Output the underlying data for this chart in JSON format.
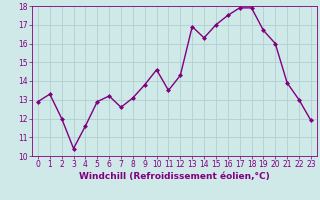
{
  "x": [
    0,
    1,
    2,
    3,
    4,
    5,
    6,
    7,
    8,
    9,
    10,
    11,
    12,
    13,
    14,
    15,
    16,
    17,
    18,
    19,
    20,
    21,
    22,
    23
  ],
  "y": [
    12.9,
    13.3,
    12.0,
    10.4,
    11.6,
    12.9,
    13.2,
    12.6,
    13.1,
    13.8,
    14.6,
    13.5,
    14.3,
    16.9,
    16.3,
    17.0,
    17.5,
    17.9,
    17.9,
    16.7,
    16.0,
    13.9,
    13.0,
    11.9
  ],
  "line_color": "#800080",
  "marker": "D",
  "marker_size": 2.0,
  "bg_color": "#cfe8e8",
  "grid_color": "#b0d0d0",
  "xlabel": "Windchill (Refroidissement éolien,°C)",
  "xlim": [
    -0.5,
    23.5
  ],
  "ylim": [
    10,
    18
  ],
  "yticks": [
    10,
    11,
    12,
    13,
    14,
    15,
    16,
    17,
    18
  ],
  "xticks": [
    0,
    1,
    2,
    3,
    4,
    5,
    6,
    7,
    8,
    9,
    10,
    11,
    12,
    13,
    14,
    15,
    16,
    17,
    18,
    19,
    20,
    21,
    22,
    23
  ],
  "tick_fontsize": 5.5,
  "xlabel_fontsize": 6.5,
  "line_width": 1.0
}
